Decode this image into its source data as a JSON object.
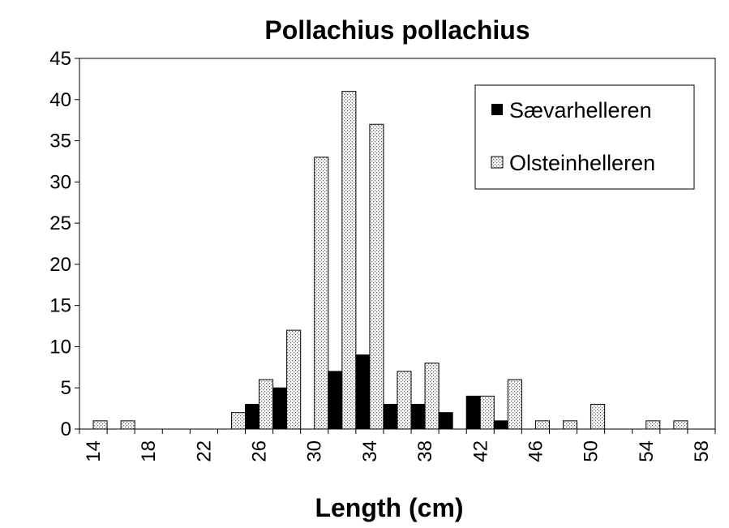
{
  "chart_data": {
    "type": "bar",
    "title": "Pollachius pollachius",
    "xlabel": "Length (cm)",
    "ylabel": "",
    "ylim": [
      0,
      45
    ],
    "yticks": [
      "0",
      "5",
      "10",
      "15",
      "20",
      "25",
      "30",
      "35",
      "40",
      "45"
    ],
    "xticks": [
      "14",
      "18",
      "22",
      "26",
      "30",
      "34",
      "38",
      "42",
      "46",
      "50",
      "54",
      "58"
    ],
    "categories": [
      14,
      16,
      18,
      20,
      22,
      24,
      26,
      28,
      30,
      32,
      34,
      36,
      38,
      40,
      42,
      44,
      46,
      48,
      50,
      52,
      54,
      56
    ],
    "series": [
      {
        "name": "Sævarhelleren",
        "color": "#000000",
        "values": [
          0,
          0,
          0,
          0,
          0,
          0,
          3,
          5,
          0,
          7,
          9,
          3,
          3,
          2,
          4,
          1,
          0,
          0,
          0,
          0,
          0,
          0
        ]
      },
      {
        "name": "Olsteinhelleren",
        "color": "stippled",
        "values": [
          1,
          1,
          0,
          0,
          0,
          2,
          6,
          12,
          33,
          41,
          37,
          7,
          8,
          0,
          4,
          6,
          1,
          1,
          3,
          0,
          1,
          1
        ]
      }
    ],
    "legend_position": "top-right",
    "grid": false
  }
}
